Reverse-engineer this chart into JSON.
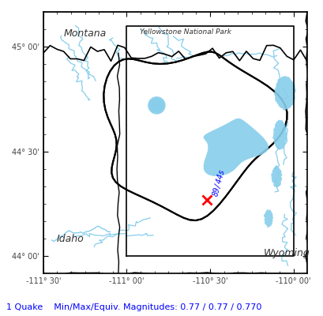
{
  "lon_min": -111.5,
  "lon_max": -109.917,
  "lat_min": 43.917,
  "lat_max": 45.167,
  "lon_ticks": [
    -111.5,
    -111.0,
    -110.5,
    -110.0
  ],
  "lat_ticks": [
    44.0,
    44.5,
    45.0
  ],
  "lon_tick_labels": [
    "-111° 30'",
    "-111° 00'",
    "-110° 30'",
    "-110° 00'"
  ],
  "lat_tick_labels": [
    "44° 00'",
    "44° 30'",
    "45° 00'"
  ],
  "title": "",
  "state_label_montana": "Montana",
  "state_label_idaho": "Idaho",
  "state_label_wyoming": "Wyoming",
  "park_label": "Yellowstone National Park",
  "quake_lon": -110.52,
  "quake_lat": 44.27,
  "quake_label": "89/44s",
  "quake_color": "blue",
  "quake_marker_color": "red",
  "bottom_text": "1 Quake    Min/Max/Equiv. Magnitudes: 0.77 / 0.77 / 0.770",
  "bottom_text_color": "#0000ff",
  "bg_color": "#ffffff",
  "map_bg": "#ffffff",
  "water_color": "#87CEEB",
  "border_color": "#000000",
  "inner_box_lon": [
    -111.0,
    -111.0,
    -110.0,
    -110.0,
    -111.0
  ],
  "inner_box_lat": [
    44.0,
    45.1,
    45.1,
    44.0,
    44.0
  ]
}
